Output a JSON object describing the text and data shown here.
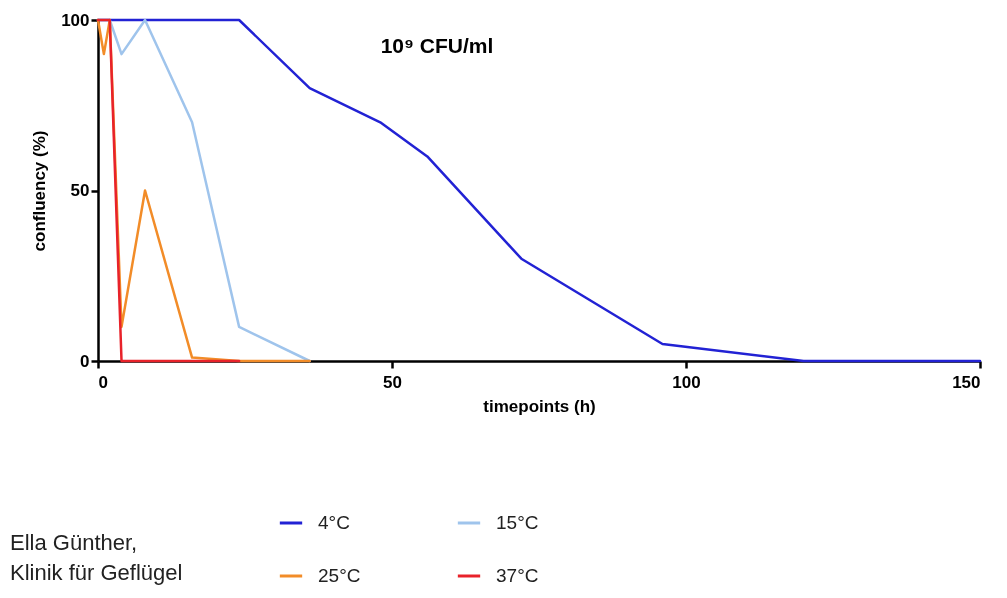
{
  "chart_data": {
    "type": "line",
    "title": "10⁹ CFU/ml",
    "xlabel": "timepoints (h)",
    "ylabel": "confluency (%)",
    "xlim": [
      0,
      150
    ],
    "xticks": [
      0,
      50,
      100,
      150
    ],
    "ylim": [
      0,
      100
    ],
    "yticks": [
      0,
      50,
      100
    ],
    "grid": false,
    "legend": "bottom",
    "annotations": [
      "Ella Günther,",
      "Klinik für Geflügel"
    ],
    "series": [
      {
        "name": "4°C",
        "color": "#2222d4",
        "x": [
          0,
          24,
          36,
          48,
          56,
          72,
          96,
          120,
          150
        ],
        "values": [
          100,
          100,
          80,
          70,
          60,
          30,
          5,
          0,
          0
        ]
      },
      {
        "name": "15°C",
        "color": "#9fc4ec",
        "x": [
          0,
          1,
          2,
          4,
          8,
          16,
          24,
          36
        ],
        "values": [
          100,
          100,
          100,
          90,
          100,
          70,
          10,
          0
        ]
      },
      {
        "name": "25°C",
        "color": "#f28c28",
        "x": [
          0,
          1,
          2,
          4,
          8,
          16,
          24,
          36
        ],
        "values": [
          100,
          90,
          100,
          10,
          50,
          1,
          0,
          0
        ]
      },
      {
        "name": "37°C",
        "color": "#e8222a",
        "x": [
          0,
          1,
          2,
          4,
          8,
          16,
          24
        ],
        "values": [
          100,
          100,
          100,
          0,
          0,
          0,
          0
        ]
      }
    ]
  }
}
